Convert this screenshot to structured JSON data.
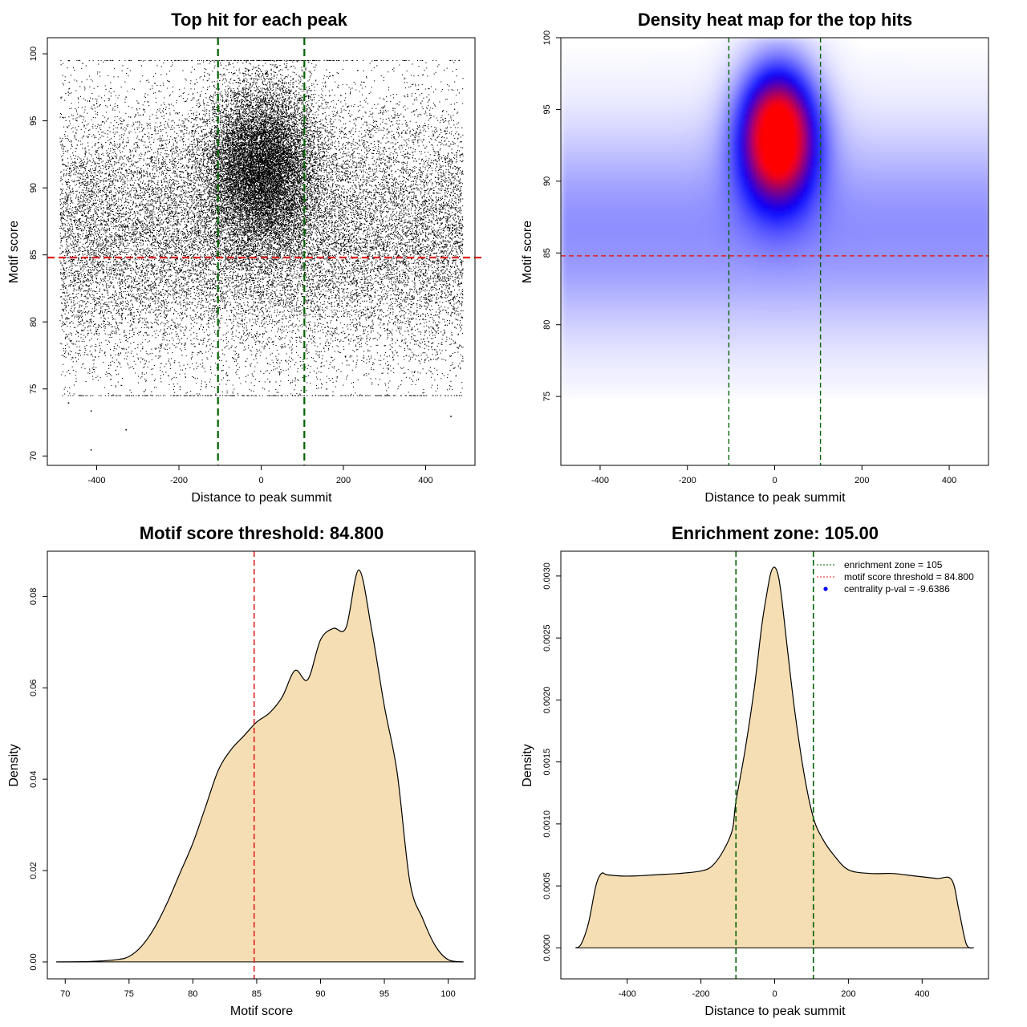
{
  "chart_data": [
    {
      "type": "scatter",
      "title": "Top hit for each peak",
      "xlabel": "Distance to peak summit",
      "ylabel": "Motif score",
      "xlim": [
        -520,
        520
      ],
      "ylim": [
        69.3,
        101.2
      ],
      "xticks": [
        -400,
        -200,
        0,
        200,
        400
      ],
      "yticks": [
        70,
        75,
        80,
        85,
        90,
        95,
        100
      ],
      "hline": {
        "y": 84.8,
        "color": "#dd2222"
      },
      "vlines": [
        {
          "x": -105,
          "color": "#006400"
        },
        {
          "x": 105,
          "color": "#006400"
        }
      ],
      "point_cloud": {
        "x_range": [
          -490,
          490
        ],
        "background_score_mean": 86.5,
        "background_score_sd": 5.2,
        "central_x_sd": 70,
        "central_score_mean": 91.5,
        "central_score_sd": 3.2,
        "score_max": 99.5
      },
      "outliers": [
        {
          "x": -415,
          "y": 70.5
        },
        {
          "x": -330,
          "y": 72.0
        },
        {
          "x": -415,
          "y": 73.4
        },
        {
          "x": 460,
          "y": 73.0
        },
        {
          "x": -470,
          "y": 74.0
        }
      ]
    },
    {
      "type": "heatmap",
      "title": "Density heat map for the top hits",
      "xlabel": "Distance to peak summit",
      "ylabel": "Motif score",
      "xlim": [
        -490,
        490
      ],
      "ylim": [
        70.2,
        100.0
      ],
      "xticks": [
        -400,
        -200,
        0,
        200,
        400
      ],
      "yticks": [
        75,
        80,
        85,
        90,
        95,
        100
      ],
      "hline": {
        "y": 84.8,
        "color": "#dd2222"
      },
      "vlines": [
        {
          "x": -105,
          "color": "#006400"
        },
        {
          "x": 105,
          "color": "#006400"
        }
      ],
      "hotspot": {
        "x": 8,
        "y": 93.2
      },
      "colors": [
        "#ffffff",
        "#0000ff",
        "#ff0000"
      ]
    },
    {
      "type": "area",
      "title": "Motif score threshold: 84.800",
      "xlabel": "Motif score",
      "ylabel": "Density",
      "xlim": [
        68.6,
        102.1
      ],
      "ylim": [
        -0.0037,
        0.0899
      ],
      "xticks": [
        70,
        75,
        80,
        85,
        90,
        95,
        100
      ],
      "yticks": [
        0.0,
        0.02,
        0.04,
        0.06,
        0.08
      ],
      "ytick_labels": [
        "0.00",
        "0.02",
        "0.04",
        "0.06",
        "0.08"
      ],
      "x": [
        69.3,
        72.0,
        74.0,
        75.0,
        76.0,
        77.0,
        78.0,
        79.0,
        80.0,
        81.0,
        82.0,
        83.0,
        84.0,
        85.0,
        86.0,
        87.0,
        88.0,
        89.0,
        90.0,
        91.0,
        92.0,
        93.0,
        94.0,
        95.0,
        96.0,
        97.0,
        98.0,
        99.0,
        100.0,
        101.2
      ],
      "values": [
        0.0,
        0.0001,
        0.0005,
        0.0012,
        0.0035,
        0.0075,
        0.013,
        0.0195,
        0.026,
        0.034,
        0.042,
        0.0465,
        0.0495,
        0.0525,
        0.0545,
        0.058,
        0.0638,
        0.0618,
        0.0705,
        0.073,
        0.0732,
        0.0858,
        0.0728,
        0.056,
        0.0415,
        0.0175,
        0.0095,
        0.0035,
        0.0005,
        0.0
      ],
      "fill": "#f5deb3",
      "vline": {
        "x": 84.8,
        "color": "#dd2222"
      }
    },
    {
      "type": "area",
      "title": "Enrichment zone: 105.00",
      "xlabel": "Distance to peak summit",
      "ylabel": "Density",
      "xlim": [
        -580,
        580
      ],
      "ylim": [
        -0.00025,
        0.0032
      ],
      "xticks": [
        -400,
        -200,
        0,
        200,
        400
      ],
      "yticks": [
        0.0,
        0.0005,
        0.001,
        0.0015,
        0.002,
        0.0025,
        0.003
      ],
      "ytick_labels": [
        "0.0000",
        "0.0005",
        "0.0010",
        "0.0015",
        "0.0020",
        "0.0025",
        "0.0030"
      ],
      "x": [
        -540,
        -525,
        -505,
        -485,
        -470,
        -455,
        -420,
        -380,
        -320,
        -260,
        -200,
        -170,
        -140,
        -115,
        -105,
        -80,
        -55,
        -35,
        -20,
        -10,
        0,
        10,
        20,
        35,
        55,
        80,
        105,
        130,
        160,
        200,
        260,
        320,
        380,
        440,
        480,
        500,
        520,
        540
      ],
      "values": [
        0.0,
        3e-05,
        0.0002,
        0.0005,
        0.0006,
        0.00059,
        0.00058,
        0.00058,
        0.00059,
        0.0006,
        0.00062,
        0.00066,
        0.00078,
        0.00095,
        0.00118,
        0.0016,
        0.0021,
        0.0026,
        0.00288,
        0.00303,
        0.00307,
        0.003,
        0.0028,
        0.0024,
        0.0019,
        0.0014,
        0.00105,
        0.00088,
        0.00075,
        0.00063,
        0.0006,
        0.0006,
        0.00058,
        0.00056,
        0.00055,
        0.0003,
        3e-05,
        0.0
      ],
      "fill": "#f5deb3",
      "vlines": [
        {
          "x": -105,
          "color": "#006400"
        },
        {
          "x": 105,
          "color": "#006400"
        }
      ],
      "legend": {
        "position": "top-right",
        "entries": [
          {
            "label": "enrichment zone = 105",
            "color": "#006400",
            "kind": "dotted-line"
          },
          {
            "label": "motif score threshold = 84.800",
            "color": "#dd2222",
            "kind": "dotted-line"
          },
          {
            "label": "centrality p-val = -9.6386",
            "color": "#0000ff",
            "kind": "point"
          }
        ]
      }
    }
  ]
}
